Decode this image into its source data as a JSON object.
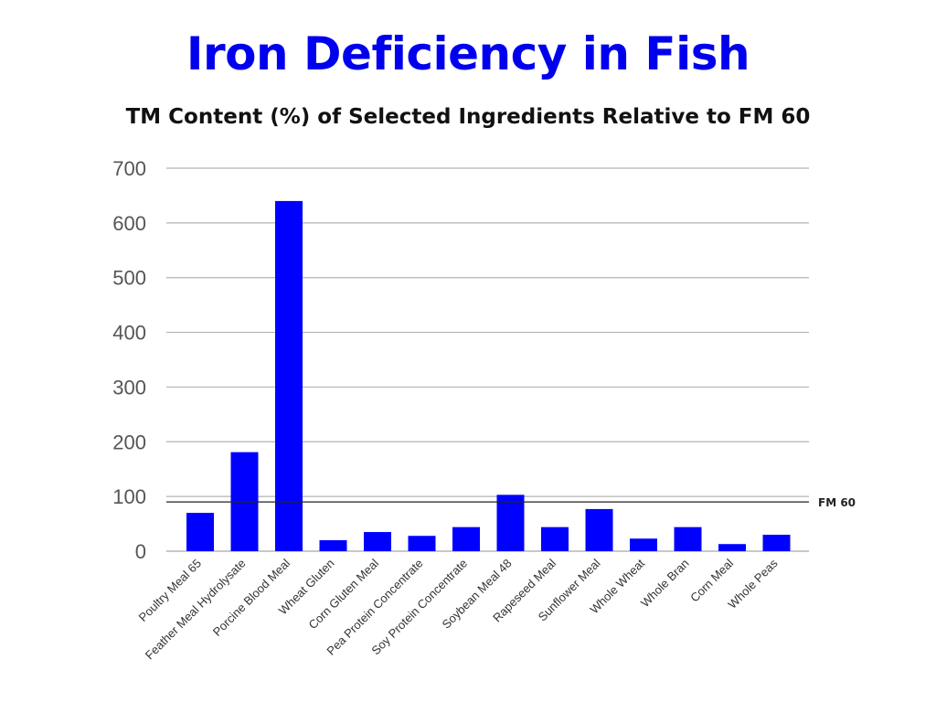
{
  "title": "Iron Deficiency in Fish",
  "subtitle": "TM Content (%) of Selected Ingredients Relative to FM 60",
  "chart_data": {
    "type": "bar",
    "categories": [
      "Poultry Meal 65",
      "Feather Meal Hydrolysate",
      "Porcine Blood Meal",
      "Wheat Gluten",
      "Corn Gluten Meal",
      "Pea Protein Concentrate",
      "Soy Protein Concentrate",
      "Soybean Meal 48",
      "Rapeseed Meal",
      "Sunflower  Meal",
      "Whole Wheat",
      "Whole Bran",
      "Corn Meal",
      "Whole Peas"
    ],
    "values": [
      70,
      181,
      640,
      20,
      35,
      28,
      44,
      103,
      44,
      77,
      23,
      44,
      13,
      30
    ],
    "yticks": [
      0,
      100,
      200,
      300,
      400,
      500,
      600,
      700
    ],
    "ylim": [
      0,
      700
    ],
    "reference_line": {
      "label": "FM 60",
      "value": 90
    },
    "bar_color": "#0000ff",
    "grid": true,
    "legend": "none"
  }
}
